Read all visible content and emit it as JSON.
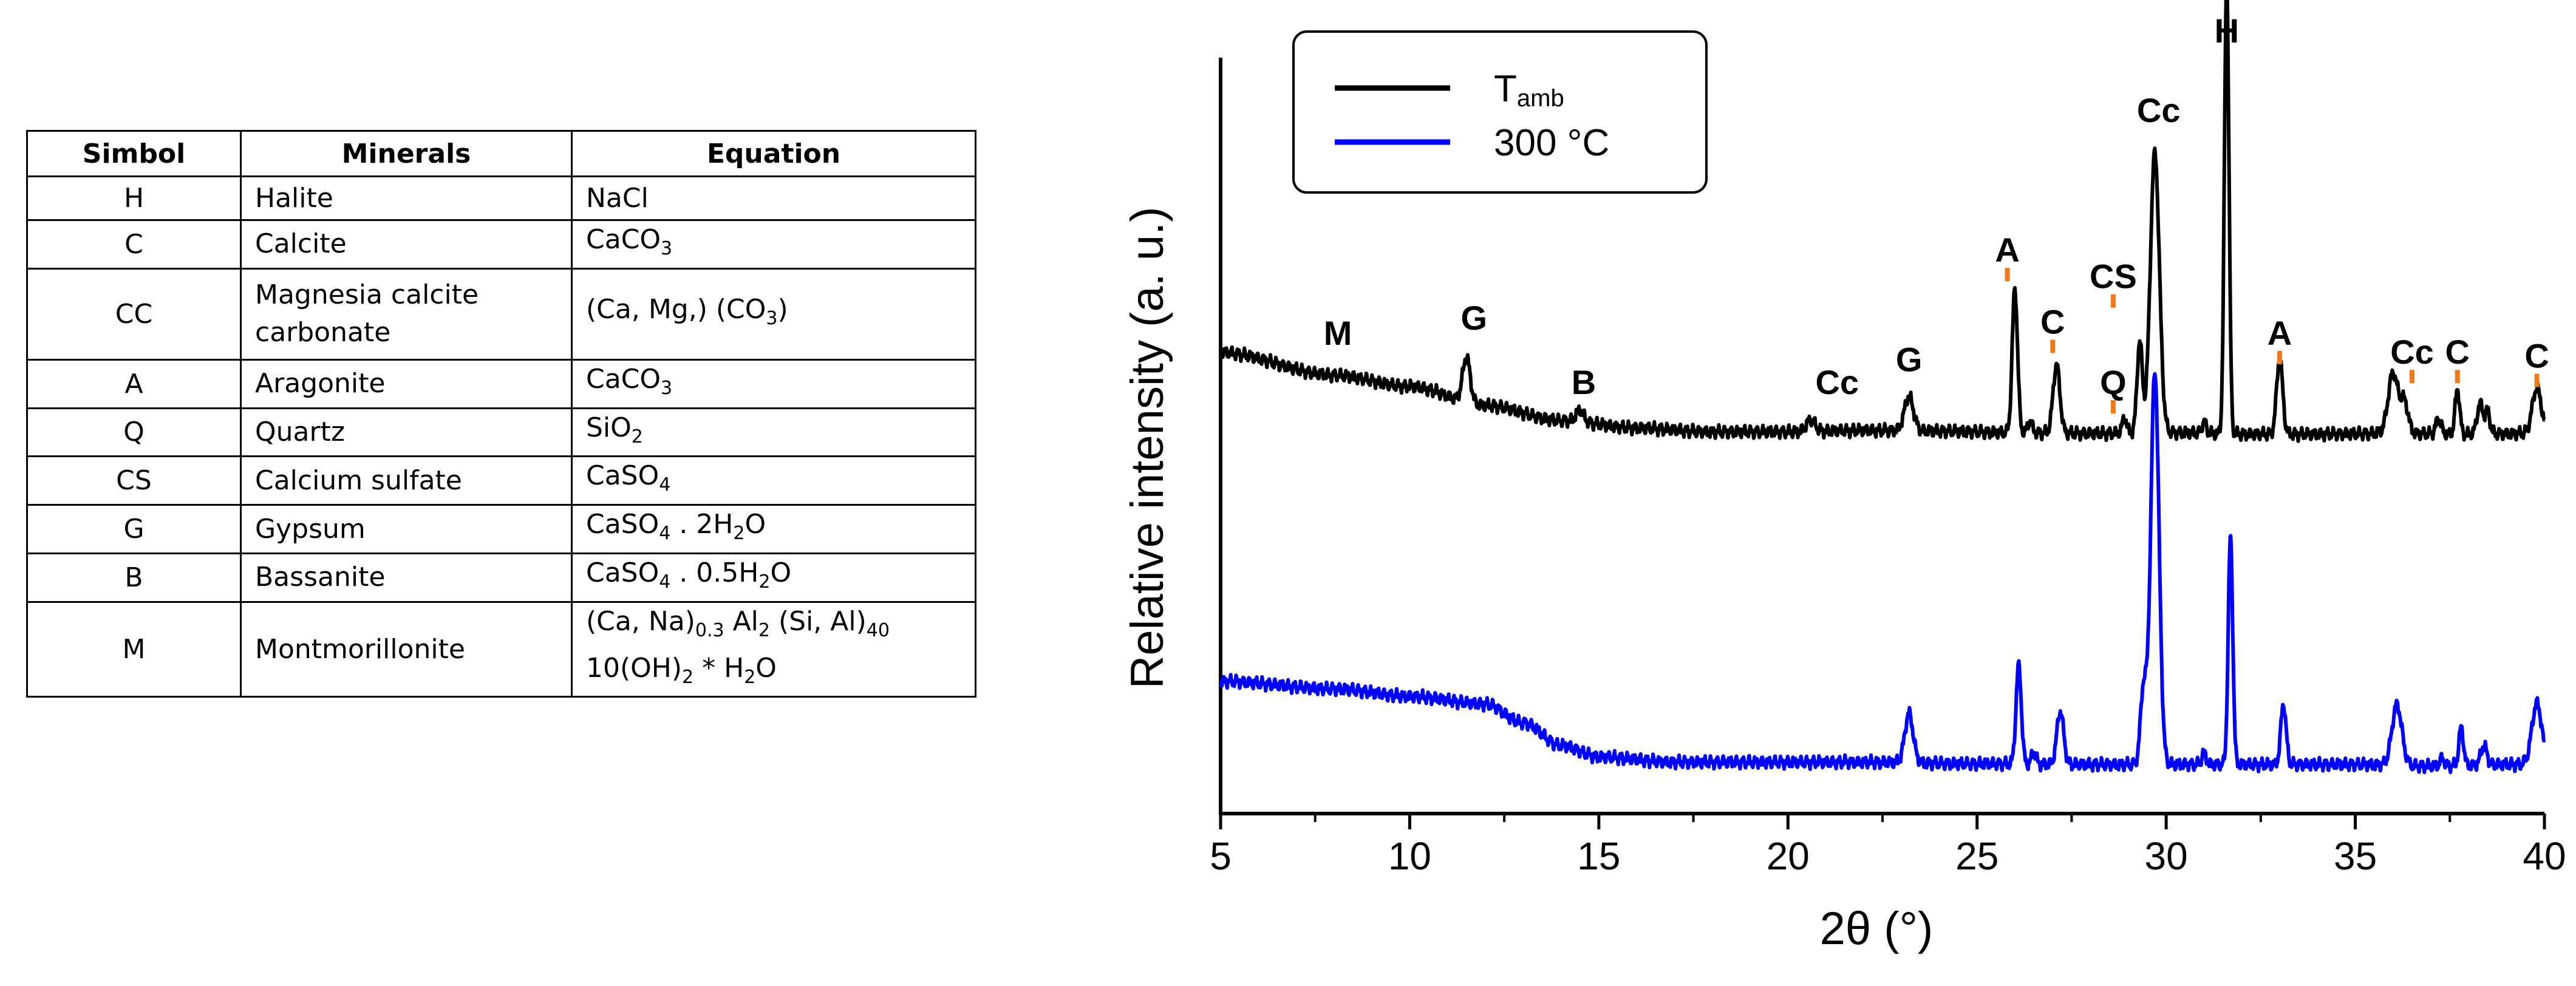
{
  "table": {
    "headers": [
      "Simbol",
      "Minerals",
      "Equation"
    ],
    "rows": [
      {
        "symbol": "H",
        "mineral": [
          "Halite"
        ],
        "equation": [
          [
            [
              "NaCl",
              ""
            ]
          ]
        ]
      },
      {
        "symbol": "C",
        "mineral": [
          "Calcite"
        ],
        "equation": [
          [
            [
              "CaCO",
              ""
            ],
            [
              "3",
              "sub"
            ]
          ]
        ]
      },
      {
        "symbol": "CC",
        "mineral": [
          "Magnesia calcite",
          "carbonate"
        ],
        "equation": [
          [
            [
              "(Ca, Mg,) (CO",
              ""
            ],
            [
              "3",
              "sub"
            ],
            [
              ")",
              ""
            ]
          ]
        ]
      },
      {
        "symbol": "A",
        "mineral": [
          "Aragonite"
        ],
        "equation": [
          [
            [
              "CaCO",
              ""
            ],
            [
              "3",
              "sub"
            ]
          ]
        ]
      },
      {
        "symbol": "Q",
        "mineral": [
          "Quartz"
        ],
        "equation": [
          [
            [
              "SiO",
              ""
            ],
            [
              "2",
              "sub"
            ]
          ]
        ]
      },
      {
        "symbol": "CS",
        "mineral": [
          "Calcium sulfate"
        ],
        "equation": [
          [
            [
              "CaSO",
              ""
            ],
            [
              "4",
              "sub"
            ]
          ]
        ]
      },
      {
        "symbol": "G",
        "mineral": [
          "Gypsum"
        ],
        "equation": [
          [
            [
              "CaSO",
              ""
            ],
            [
              "4",
              "sub"
            ],
            [
              " . 2H",
              ""
            ],
            [
              "2",
              "sub"
            ],
            [
              "O",
              ""
            ]
          ]
        ]
      },
      {
        "symbol": "B",
        "mineral": [
          "Bassanite"
        ],
        "equation": [
          [
            [
              "CaSO",
              ""
            ],
            [
              "4",
              "sub"
            ],
            [
              " . 0.5H",
              ""
            ],
            [
              "2",
              "sub"
            ],
            [
              "O",
              ""
            ]
          ]
        ]
      },
      {
        "symbol": "M",
        "mineral": [
          "Montmorillonite"
        ],
        "equation": [
          [
            [
              "(Ca, Na)",
              ""
            ],
            [
              "0.3",
              "sub"
            ],
            [
              " Al",
              ""
            ],
            [
              "2",
              "sub"
            ],
            [
              " (Si, Al)",
              ""
            ],
            [
              "40",
              "sub"
            ]
          ],
          [
            [
              "10(OH)",
              ""
            ],
            [
              "2",
              "sub"
            ],
            [
              " * H",
              ""
            ],
            [
              "2",
              "sub"
            ],
            [
              "O",
              ""
            ]
          ]
        ]
      }
    ]
  },
  "chart_data": {
    "type": "line",
    "xlabel": "2θ (°)",
    "ylabel": "Relative intensity (a. u.)",
    "xlim": [
      5,
      40
    ],
    "ylim": [
      0,
      100
    ],
    "xticks": [
      5,
      10,
      15,
      20,
      25,
      30,
      35,
      40
    ],
    "yticks_shown": false,
    "legend": {
      "position": "top-left",
      "entries": [
        {
          "name": "T",
          "subscript": "amb",
          "color": "#000000"
        },
        {
          "name": "300 °C",
          "color": "#0000ff"
        }
      ]
    },
    "series": [
      {
        "name": "Tamb",
        "color": "#000000",
        "baseline": [
          [
            5,
            61
          ],
          [
            8,
            58
          ],
          [
            10,
            56.5
          ],
          [
            12,
            54
          ],
          [
            14,
            52
          ],
          [
            16,
            51
          ],
          [
            18,
            50.5
          ],
          [
            20,
            50.5
          ],
          [
            22,
            50.7
          ],
          [
            24,
            50.6
          ],
          [
            26,
            50.4
          ],
          [
            28,
            50.3
          ],
          [
            30,
            50.4
          ],
          [
            32,
            50.2
          ],
          [
            34,
            50.2
          ],
          [
            36,
            50.3
          ],
          [
            38,
            50.2
          ],
          [
            40,
            50.3
          ]
        ],
        "peaks": [
          [
            11.5,
            6,
            0.1
          ],
          [
            14.5,
            1.5,
            0.1
          ],
          [
            20.6,
            1.5,
            0.12
          ],
          [
            23.2,
            4.5,
            0.12
          ],
          [
            26.0,
            19,
            0.07
          ],
          [
            26.4,
            1.5,
            0.06
          ],
          [
            27.1,
            9,
            0.09
          ],
          [
            28.9,
            2,
            0.06
          ],
          [
            29.3,
            12,
            0.07
          ],
          [
            29.7,
            37,
            0.12
          ],
          [
            31.0,
            1.5,
            0.06
          ],
          [
            31.6,
            60,
            0.06
          ],
          [
            33.0,
            10,
            0.08
          ],
          [
            36.0,
            8,
            0.13
          ],
          [
            36.3,
            4,
            0.1
          ],
          [
            37.2,
            2,
            0.07
          ],
          [
            37.7,
            6,
            0.06
          ],
          [
            38.3,
            4,
            0.08
          ],
          [
            38.5,
            3,
            0.06
          ],
          [
            39.8,
            6,
            0.12
          ]
        ]
      },
      {
        "name": "300 °C",
        "color": "#0000ff",
        "baseline": [
          [
            5,
            17.5
          ],
          [
            8,
            16.5
          ],
          [
            10,
            15.5
          ],
          [
            12,
            14.5
          ],
          [
            13,
            12
          ],
          [
            14,
            9
          ],
          [
            15,
            7.5
          ],
          [
            17,
            6.8
          ],
          [
            20,
            6.8
          ],
          [
            22,
            6.8
          ],
          [
            25,
            6.6
          ],
          [
            28,
            6.5
          ],
          [
            30,
            6.5
          ],
          [
            32,
            6.5
          ],
          [
            35,
            6.5
          ],
          [
            37,
            6.3
          ],
          [
            39,
            6.5
          ],
          [
            40,
            6.6
          ]
        ],
        "peaks": [
          [
            23.2,
            6.5,
            0.11
          ],
          [
            26.1,
            13,
            0.07
          ],
          [
            26.5,
            1.5,
            0.06
          ],
          [
            27.2,
            7,
            0.09
          ],
          [
            29.4,
            10,
            0.08
          ],
          [
            29.7,
            52,
            0.11
          ],
          [
            31.0,
            1.5,
            0.06
          ],
          [
            31.7,
            30,
            0.06
          ],
          [
            33.1,
            8,
            0.07
          ],
          [
            36.1,
            8,
            0.13
          ],
          [
            37.3,
            1,
            0.06
          ],
          [
            37.8,
            5,
            0.06
          ],
          [
            38.4,
            2.5,
            0.08
          ],
          [
            39.8,
            8,
            0.13
          ]
        ]
      }
    ],
    "annotations": [
      {
        "label": "M",
        "x": 8.1,
        "y": 62,
        "mark": false
      },
      {
        "label": "G",
        "x": 11.7,
        "y": 64,
        "mark": false
      },
      {
        "label": "B",
        "x": 14.6,
        "y": 55.5,
        "mark": false
      },
      {
        "label": "Cc",
        "x": 21.3,
        "y": 55.5,
        "mark": false
      },
      {
        "label": "G",
        "x": 23.2,
        "y": 58.5,
        "mark": false
      },
      {
        "label": "A",
        "x": 25.8,
        "y": 73,
        "mark": true
      },
      {
        "label": "C",
        "x": 27.0,
        "y": 63.5,
        "mark": true
      },
      {
        "label": "Q",
        "x": 28.6,
        "y": 55.5,
        "mark": true
      },
      {
        "label": "CS",
        "x": 28.6,
        "y": 69.5,
        "mark": true
      },
      {
        "label": "Cc",
        "x": 29.8,
        "y": 91.5,
        "mark": false
      },
      {
        "label": "H",
        "x": 31.6,
        "y": 102,
        "mark": false
      },
      {
        "label": "A",
        "x": 33.0,
        "y": 62,
        "mark": true
      },
      {
        "label": "Cc",
        "x": 36.5,
        "y": 59.5,
        "mark": true
      },
      {
        "label": "C",
        "x": 37.7,
        "y": 59.5,
        "mark": true
      },
      {
        "label": "C",
        "x": 39.8,
        "y": 59,
        "mark": true
      }
    ]
  }
}
